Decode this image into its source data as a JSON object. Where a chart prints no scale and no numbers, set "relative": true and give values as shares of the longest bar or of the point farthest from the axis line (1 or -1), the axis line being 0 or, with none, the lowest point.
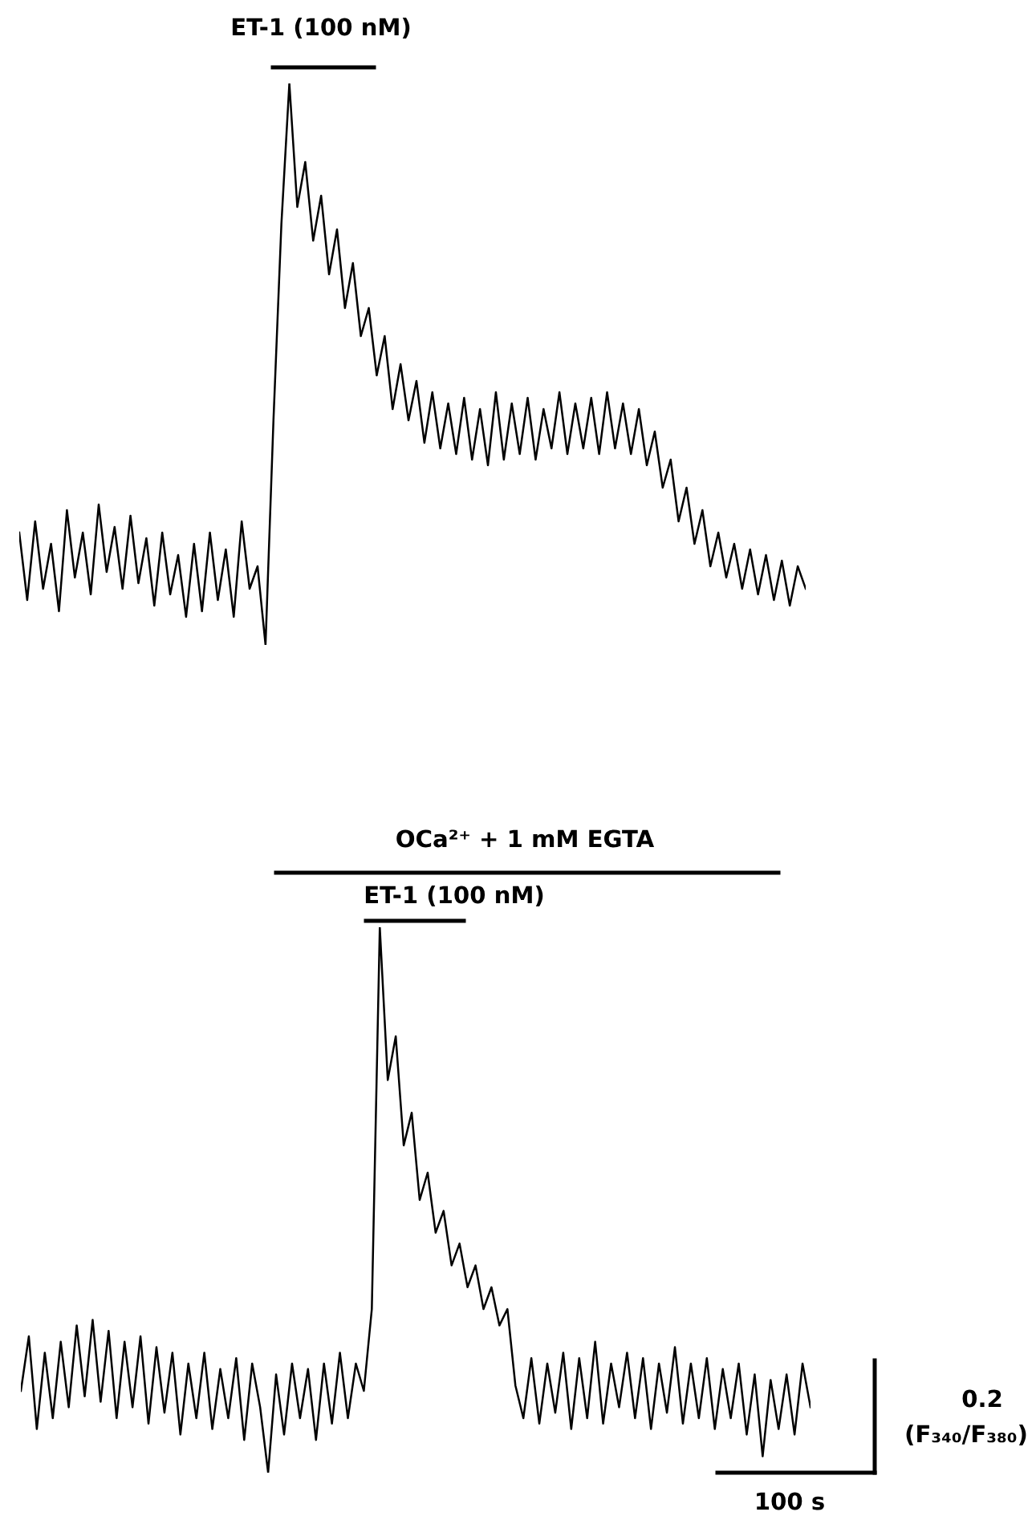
{
  "chart_data": [
    {
      "type": "line",
      "relative": true,
      "categories": [
        null,
        null,
        null,
        null,
        null,
        null,
        null,
        null,
        null,
        null,
        null,
        null,
        null,
        null,
        null,
        null,
        null,
        null,
        null,
        null,
        null,
        null,
        null,
        null,
        null,
        null,
        null,
        null,
        null,
        null,
        null,
        null,
        null,
        null,
        null,
        null,
        null,
        null,
        null,
        null,
        null,
        null,
        null,
        null,
        null,
        null,
        null,
        null,
        null,
        null,
        null,
        null,
        null,
        null,
        null,
        null,
        null,
        null,
        null,
        null,
        null,
        null,
        null,
        null,
        null,
        null,
        null,
        null,
        null,
        null,
        null,
        null,
        null,
        null,
        null,
        null,
        null,
        null,
        null,
        null,
        null,
        null,
        null,
        null,
        null,
        null,
        null,
        null,
        null,
        null,
        null,
        null,
        null,
        null,
        null,
        null,
        null,
        null,
        null,
        null
      ],
      "series": [
        {
          "color": "#000000",
          "values": [
            0.2,
            0.08,
            0.22,
            0.1,
            0.18,
            0.06,
            0.24,
            0.12,
            0.2,
            0.09,
            0.25,
            0.13,
            0.21,
            0.1,
            0.23,
            0.11,
            0.19,
            0.07,
            0.2,
            0.09,
            0.16,
            0.05,
            0.18,
            0.06,
            0.2,
            0.08,
            0.17,
            0.05,
            0.22,
            0.1,
            0.14,
            0.0,
            0.4,
            0.75,
            1.0,
            0.78,
            0.86,
            0.72,
            0.8,
            0.66,
            0.74,
            0.6,
            0.68,
            0.55,
            0.6,
            0.48,
            0.55,
            0.42,
            0.5,
            0.4,
            0.47,
            0.36,
            0.45,
            0.35,
            0.43,
            0.34,
            0.44,
            0.33,
            0.42,
            0.32,
            0.45,
            0.33,
            0.43,
            0.34,
            0.44,
            0.33,
            0.42,
            0.35,
            0.45,
            0.34,
            0.43,
            0.35,
            0.44,
            0.34,
            0.45,
            0.35,
            0.43,
            0.34,
            0.42,
            0.32,
            0.38,
            0.28,
            0.33,
            0.22,
            0.28,
            0.18,
            0.24,
            0.14,
            0.2,
            0.12,
            0.18,
            0.1,
            0.17,
            0.09,
            0.16,
            0.08,
            0.15,
            0.07,
            0.14,
            0.1
          ]
        }
      ],
      "annotations": [
        "ET-1 (100 nM)"
      ]
    },
    {
      "type": "line",
      "relative": true,
      "categories": [
        null,
        null,
        null,
        null,
        null,
        null,
        null,
        null,
        null,
        null,
        null,
        null,
        null,
        null,
        null,
        null,
        null,
        null,
        null,
        null,
        null,
        null,
        null,
        null,
        null,
        null,
        null,
        null,
        null,
        null,
        null,
        null,
        null,
        null,
        null,
        null,
        null,
        null,
        null,
        null,
        null,
        null,
        null,
        null,
        null,
        null,
        null,
        null,
        null,
        null,
        null,
        null,
        null,
        null,
        null,
        null,
        null,
        null,
        null,
        null,
        null,
        null,
        null,
        null,
        null,
        null,
        null,
        null,
        null,
        null,
        null,
        null,
        null,
        null,
        null,
        null,
        null,
        null,
        null,
        null,
        null,
        null,
        null,
        null,
        null,
        null,
        null,
        null,
        null,
        null,
        null,
        null,
        null,
        null,
        null,
        null,
        null,
        null,
        null,
        null
      ],
      "series": [
        {
          "color": "#000000",
          "values": [
            0.15,
            0.25,
            0.08,
            0.22,
            0.1,
            0.24,
            0.12,
            0.27,
            0.14,
            0.28,
            0.13,
            0.26,
            0.1,
            0.24,
            0.12,
            0.25,
            0.09,
            0.23,
            0.11,
            0.22,
            0.07,
            0.2,
            0.1,
            0.22,
            0.08,
            0.19,
            0.1,
            0.21,
            0.06,
            0.2,
            0.12,
            0.0,
            0.18,
            0.07,
            0.2,
            0.1,
            0.19,
            0.06,
            0.2,
            0.09,
            0.22,
            0.1,
            0.2,
            0.15,
            0.3,
            1.0,
            0.72,
            0.8,
            0.6,
            0.66,
            0.5,
            0.55,
            0.44,
            0.48,
            0.38,
            0.42,
            0.34,
            0.38,
            0.3,
            0.34,
            0.27,
            0.3,
            0.16,
            0.1,
            0.21,
            0.09,
            0.2,
            0.11,
            0.22,
            0.08,
            0.21,
            0.1,
            0.24,
            0.09,
            0.2,
            0.12,
            0.22,
            0.1,
            0.21,
            0.08,
            0.2,
            0.11,
            0.23,
            0.09,
            0.2,
            0.1,
            0.21,
            0.08,
            0.19,
            0.1,
            0.2,
            0.07,
            0.18,
            0.03,
            0.17,
            0.08,
            0.18,
            0.07,
            0.2,
            0.12
          ]
        }
      ],
      "annotations": [
        "OCa²⁺ + 1 mM EGTA",
        "ET-1 (100 nM)",
        "0.2",
        "(F₃₄₀/F₃₈₀)",
        "100 s"
      ]
    }
  ]
}
